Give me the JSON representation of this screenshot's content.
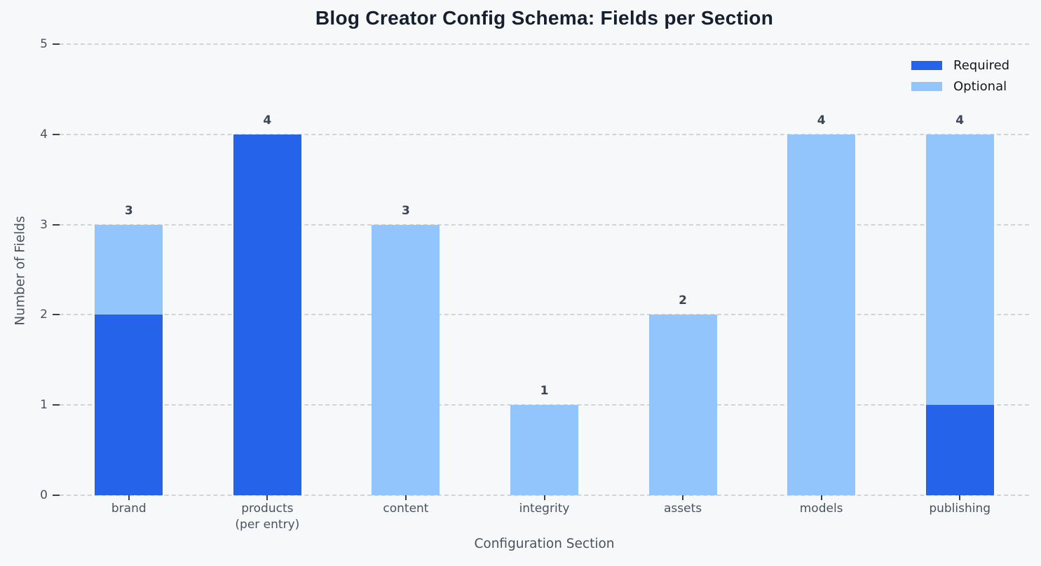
{
  "page": {
    "background": "#f7f8fa"
  },
  "chart_data": {
    "type": "bar",
    "stacked": true,
    "title": "Blog Creator Config Schema: Fields per Section",
    "xlabel": "Configuration Section",
    "ylabel": "Number of Fields",
    "categories": [
      "brand",
      "products\n(per entry)",
      "content",
      "integrity",
      "assets",
      "models",
      "publishing"
    ],
    "series": [
      {
        "name": "Required",
        "color": "#2563eb",
        "values": [
          2,
          4,
          0,
          0,
          0,
          0,
          1
        ]
      },
      {
        "name": "Optional",
        "color": "#93c5fd",
        "values": [
          1,
          0,
          3,
          1,
          2,
          4,
          3
        ]
      }
    ],
    "totals": [
      3,
      4,
      3,
      1,
      2,
      4,
      4
    ],
    "ylim": [
      0,
      5
    ],
    "yticks": [
      0,
      1,
      2,
      3,
      4,
      5
    ],
    "grid": "horizontal-dashed",
    "legend_position": "upper-right"
  }
}
